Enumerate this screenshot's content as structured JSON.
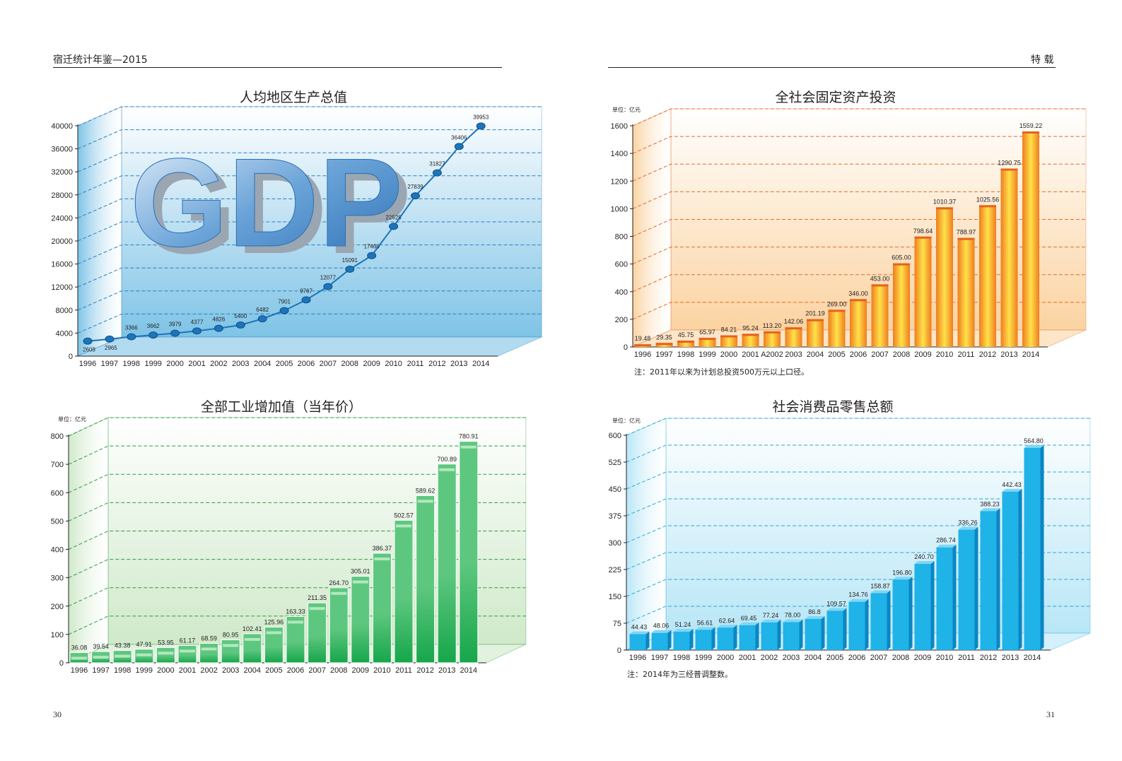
{
  "page": {
    "left_header": "宿迁统计年鉴—2015",
    "right_header": "特  载",
    "left_page_number": "30",
    "right_page_number": "31"
  },
  "chart_data": [
    {
      "type": "line",
      "title": "人均地区生产总值",
      "watermark": "GDP",
      "unit": "",
      "categories": [
        "1996",
        "1997",
        "1998",
        "1999",
        "2000",
        "2001",
        "2002",
        "2003",
        "2004",
        "2005",
        "2006",
        "2007",
        "2008",
        "2009",
        "2010",
        "2011",
        "2012",
        "2013",
        "2014"
      ],
      "values": [
        2608,
        2965,
        3366,
        3662,
        3979,
        4377,
        4826,
        5400,
        6482,
        7901,
        9767,
        12077,
        15091,
        17460,
        22525,
        27839,
        31827,
        36406,
        39953
      ],
      "ylim": [
        0,
        40000
      ],
      "yticks": [
        0,
        4000,
        8000,
        12000,
        16000,
        20000,
        24000,
        28000,
        32000,
        36000,
        40000
      ],
      "colors": {
        "line": "#1d74b9",
        "panel": "#7ec3e6",
        "grid": "#2b7fc0"
      }
    },
    {
      "type": "bar",
      "title": "全社会固定资产投资",
      "unit": "单位：亿元",
      "categories": [
        "1996",
        "1997",
        "1998",
        "1999",
        "2000",
        "2001",
        "A2002",
        "2003",
        "2004",
        "2005",
        "2006",
        "2007",
        "2008",
        "2009",
        "2010",
        "2011",
        "2012",
        "2013",
        "2014"
      ],
      "values": [
        19.48,
        29.35,
        45.75,
        65.97,
        84.21,
        95.24,
        113.2,
        142.06,
        201.19,
        269.0,
        346.0,
        453.0,
        605.0,
        798.64,
        1010.37,
        788.97,
        1025.56,
        1290.75,
        1559.22
      ],
      "value_labels": [
        "19.48",
        "29.35",
        "45.75",
        "65.97",
        "84.21",
        "95.24",
        "113.20",
        "142.06",
        "201.19",
        "269.00",
        "346.00",
        "453.00",
        "605.00",
        "798.64",
        "1010.37",
        "788.97",
        "1025.56",
        "1290.75",
        "1559.22"
      ],
      "ylim": [
        0,
        1600
      ],
      "yticks": [
        0,
        200,
        400,
        600,
        800,
        1000,
        1200,
        1400,
        1600
      ],
      "note": "注：2011年以来为计划总投资500万元以上口径。",
      "colors": {
        "bar": "#f07c1e",
        "bar_glow": "#ffe24a",
        "panel": "#fbd3a1",
        "grid": "#e66a2c"
      }
    },
    {
      "type": "bar",
      "title": "全部工业增加值（当年价）",
      "unit": "单位：亿元",
      "categories": [
        "1996",
        "1997",
        "1998",
        "1999",
        "2000",
        "2001",
        "2002",
        "2003",
        "2004",
        "2005",
        "2006",
        "2007",
        "2008",
        "2009",
        "2010",
        "2011",
        "2012",
        "2013",
        "2014"
      ],
      "values": [
        36.08,
        39.54,
        43.38,
        47.91,
        53.95,
        61.17,
        68.59,
        80.95,
        102.41,
        125.96,
        163.33,
        211.35,
        264.7,
        305.01,
        386.37,
        502.57,
        589.62,
        700.89,
        780.91
      ],
      "value_labels": [
        "36.08",
        "39.54",
        "43.38",
        "47.91",
        "53.95",
        "61.17",
        "68.59",
        "80.95",
        "102.41",
        "125.96",
        "163.33",
        "211.35",
        "264.70",
        "305.01",
        "386.37",
        "502.57",
        "589.62",
        "700.89",
        "780.91"
      ],
      "ylim": [
        0,
        800
      ],
      "yticks": [
        0,
        100,
        200,
        300,
        400,
        500,
        600,
        700,
        800
      ],
      "colors": {
        "bar": "#5ec77f",
        "bar_dark": "#16a64a",
        "panel": "#cfe9c9",
        "grid": "#2f9a45"
      }
    },
    {
      "type": "bar",
      "title": "社会消费品零售总额",
      "unit": "单位：亿元",
      "categories": [
        "1996",
        "1997",
        "1998",
        "1999",
        "2000",
        "2001",
        "2002",
        "2003",
        "2004",
        "2005",
        "2006",
        "2007",
        "2008",
        "2009",
        "2010",
        "2011",
        "2012",
        "2013",
        "2014"
      ],
      "values": [
        44.43,
        48.06,
        51.24,
        56.61,
        62.64,
        69.45,
        77.24,
        78.0,
        86.8,
        109.57,
        134.76,
        158.87,
        196.8,
        240.7,
        286.74,
        336.26,
        388.23,
        442.43,
        564.8
      ],
      "value_labels": [
        "44.43",
        "48.06",
        "51.24",
        "56.61",
        "62.64",
        "69.45",
        "77.24",
        "78.00",
        "86.8",
        "109.57",
        "134.76",
        "158.87",
        "196.80",
        "240.70",
        "286.74",
        "336.26",
        "388.23",
        "442.43",
        "564.80"
      ],
      "ylim": [
        0,
        600
      ],
      "yticks": [
        0,
        75,
        150,
        225,
        300,
        375,
        450,
        525,
        600
      ],
      "note": "注：2014年为三经普调整数。",
      "colors": {
        "bar": "#1fb3e8",
        "bar_side": "#0b86c2",
        "panel": "#b8e6f6",
        "grid": "#2aa8d9"
      }
    }
  ]
}
